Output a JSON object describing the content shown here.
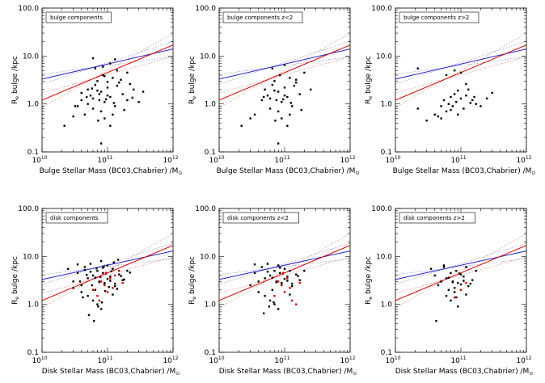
{
  "figure": {
    "x_tick_labels": [
      "10",
      "10",
      "10"
    ],
    "x_tick_exponents": [
      "10",
      "11",
      "12"
    ],
    "y_tick_labels": [
      "0.1",
      "1.0",
      "10.0",
      "100.0"
    ]
  },
  "chart_data": [
    {
      "type": "scatter",
      "panel_label": "bulge components",
      "xlabel": "Bulge Stellar Mass (BC03,Chabrier) /M",
      "xlabel_sub": "⊙",
      "ylabel": "R",
      "ylabel_sub": "e",
      "ylabel_rest": " bulge /kpc",
      "xscale": "log",
      "yscale": "log",
      "xlim": [
        10000000000,
        1000000000000
      ],
      "ylim": [
        0.1,
        100
      ],
      "series": [
        {
          "name": "points",
          "color": "#000000",
          "x": [
            22000000000.0,
            30000000000.0,
            35000000000.0,
            40000000000.0,
            45000000000.0,
            50000000000.0,
            55000000000.0,
            60000000000.0,
            65000000000.0,
            70000000000.0,
            75000000000.0,
            80000000000.0,
            85000000000.0,
            90000000000.0,
            100000000000.0,
            110000000000.0,
            120000000000.0,
            130000000000.0,
            150000000000.0,
            170000000000.0,
            200000000000.0,
            250000000000.0,
            300000000000.0,
            350000000000.0,
            50000000000.0,
            60000000000.0,
            70000000000.0,
            80000000000.0,
            90000000000.0,
            100000000000.0,
            120000000000.0,
            140000000000.0,
            40000000000.0,
            65000000000.0,
            85000000000.0,
            110000000000.0,
            130000000000.0,
            160000000000.0,
            220000000000.0,
            32000000000.0,
            48000000000.0,
            58000000000.0,
            72000000000.0,
            95000000000.0,
            125000000000.0,
            180000000000.0,
            240000000000.0,
            80000000000.0,
            110000000000.0,
            200000000000.0,
            60000000000.0,
            90000000000.0,
            140000000000.0,
            100000000000.0,
            75000000000.0
          ],
          "y": [
            0.35,
            0.55,
            0.9,
            1.2,
            0.6,
            2.0,
            1.5,
            0.8,
            2.5,
            3.0,
            1.2,
            1.8,
            4.0,
            0.5,
            2.2,
            1.4,
            3.5,
            0.9,
            2.8,
            1.6,
            4.5,
            2.0,
            1.1,
            1.8,
            1.0,
            1.3,
            1.9,
            0.7,
            1.1,
            1.5,
            0.6,
            2.4,
            1.7,
            5.5,
            6.0,
            7.0,
            8.5,
            3.2,
            2.6,
            0.9,
            1.4,
            2.1,
            0.45,
            1.25,
            1.05,
            0.75,
            1.35,
            0.15,
            0.35,
            1.2,
            9.0,
            3.8,
            5.0,
            2.9,
            1.6
          ]
        }
      ],
      "fit_lines": [
        {
          "name": "blue fit",
          "color": "#2222cc",
          "x": [
            10000000000.0,
            1000000000000.0
          ],
          "y": [
            3.3,
            14
          ]
        },
        {
          "name": "red fit",
          "color": "#dd0000",
          "x": [
            10000000000.0,
            1000000000000.0
          ],
          "y": [
            1.2,
            17
          ]
        }
      ]
    },
    {
      "type": "scatter",
      "panel_label": "bulge components z<2",
      "xlabel": "Bulge Stellar Mass (BC03,Chabrier) /M",
      "xlabel_sub": "⊙",
      "ylabel": "R",
      "ylabel_sub": "e",
      "ylabel_rest": " bulge /kpc",
      "xscale": "log",
      "yscale": "log",
      "xlim": [
        10000000000,
        1000000000000
      ],
      "ylim": [
        0.1,
        100
      ],
      "series": [
        {
          "name": "points",
          "color": "#000000",
          "x": [
            22000000000.0,
            35000000000.0,
            45000000000.0,
            50000000000.0,
            55000000000.0,
            60000000000.0,
            65000000000.0,
            70000000000.0,
            75000000000.0,
            80000000000.0,
            85000000000.0,
            90000000000.0,
            100000000000.0,
            110000000000.0,
            120000000000.0,
            130000000000.0,
            150000000000.0,
            170000000000.0,
            200000000000.0,
            250000000000.0,
            60000000000.0,
            70000000000.0,
            80000000000.0,
            90000000000.0,
            100000000000.0,
            120000000000.0,
            140000000000.0,
            48000000000.0,
            72000000000.0,
            95000000000.0,
            125000000000.0,
            180000000000.0,
            80000000000.0,
            110000000000.0,
            65000000000.0,
            100000000000.0,
            150000000000.0,
            30000000000.0
          ],
          "y": [
            0.35,
            0.6,
            1.2,
            2.0,
            1.5,
            0.8,
            2.5,
            3.0,
            1.2,
            1.8,
            4.0,
            0.5,
            2.2,
            1.4,
            3.5,
            0.9,
            2.8,
            1.6,
            4.5,
            2.0,
            1.3,
            1.9,
            0.7,
            1.1,
            1.5,
            0.6,
            2.4,
            1.4,
            0.45,
            1.25,
            1.05,
            0.75,
            0.15,
            0.35,
            5.5,
            6.5,
            3.2,
            0.5
          ]
        }
      ],
      "fit_lines": [
        {
          "name": "blue fit",
          "color": "#2222cc",
          "x": [
            10000000000.0,
            1000000000000.0
          ],
          "y": [
            3.3,
            14
          ]
        },
        {
          "name": "red fit",
          "color": "#dd0000",
          "x": [
            10000000000.0,
            1000000000000.0
          ],
          "y": [
            1.2,
            17
          ]
        }
      ]
    },
    {
      "type": "scatter",
      "panel_label": "bulge components z>2",
      "xlabel": "Bulge Stellar Mass (BC03,Chabrier) /M",
      "xlabel_sub": "⊙",
      "ylabel": "R",
      "ylabel_sub": "e",
      "ylabel_rest": " bulge /kpc",
      "xscale": "log",
      "yscale": "log",
      "xlim": [
        10000000000,
        1000000000000
      ],
      "ylim": [
        0.1,
        100
      ],
      "series": [
        {
          "name": "points",
          "color": "#000000",
          "x": [
            22000000000.0,
            30000000000.0,
            40000000000.0,
            45000000000.0,
            50000000000.0,
            55000000000.0,
            60000000000.0,
            65000000000.0,
            70000000000.0,
            75000000000.0,
            80000000000.0,
            85000000000.0,
            90000000000.0,
            100000000000.0,
            110000000000.0,
            120000000000.0,
            130000000000.0,
            150000000000.0,
            170000000000.0,
            200000000000.0,
            250000000000.0,
            300000000000.0,
            50000000000.0,
            70000000000.0,
            90000000000.0,
            120000000000.0,
            140000000000.0,
            60000000000.0,
            80000000000.0,
            100000000000.0,
            160000000000.0,
            22000000000.0
          ],
          "y": [
            0.8,
            0.45,
            0.6,
            0.55,
            0.9,
            1.2,
            0.7,
            1.0,
            1.4,
            0.9,
            1.6,
            1.1,
            0.6,
            1.3,
            0.8,
            1.5,
            2.0,
            1.2,
            1.0,
            0.9,
            1.3,
            1.7,
            0.5,
            0.75,
            1.9,
            2.6,
            1.05,
            4.0,
            5.0,
            4.5,
            1.4,
            5.5
          ]
        }
      ],
      "fit_lines": [
        {
          "name": "blue fit",
          "color": "#2222cc",
          "x": [
            10000000000.0,
            1000000000000.0
          ],
          "y": [
            3.3,
            14
          ]
        },
        {
          "name": "red fit",
          "color": "#dd0000",
          "x": [
            10000000000.0,
            1000000000000.0
          ],
          "y": [
            1.2,
            17
          ]
        }
      ]
    },
    {
      "type": "scatter",
      "panel_label": "disk components",
      "xlabel": "Disk Stellar Mass (BC03,Chabrier) /M",
      "xlabel_sub": "⊙",
      "ylabel": "R",
      "ylabel_sub": "e",
      "ylabel_rest": " bulge /kpc",
      "xscale": "log",
      "yscale": "log",
      "xlim": [
        10000000000,
        1000000000000
      ],
      "ylim": [
        0.1,
        100
      ],
      "series": [
        {
          "name": "points",
          "color": "#000000",
          "x": [
            25000000000.0,
            30000000000.0,
            35000000000.0,
            40000000000.0,
            45000000000.0,
            50000000000.0,
            55000000000.0,
            60000000000.0,
            65000000000.0,
            70000000000.0,
            75000000000.0,
            80000000000.0,
            85000000000.0,
            90000000000.0,
            100000000000.0,
            110000000000.0,
            120000000000.0,
            130000000000.0,
            150000000000.0,
            170000000000.0,
            200000000000.0,
            30000000000.0,
            40000000000.0,
            50000000000.0,
            60000000000.0,
            70000000000.0,
            80000000000.0,
            90000000000.0,
            100000000000.0,
            120000000000.0,
            140000000000.0,
            35000000000.0,
            45000000000.0,
            55000000000.0,
            65000000000.0,
            75000000000.0,
            85000000000.0,
            95000000000.0,
            110000000000.0,
            130000000000.0,
            160000000000.0,
            220000000000.0,
            42000000000.0,
            52000000000.0,
            62000000000.0,
            72000000000.0,
            82000000000.0,
            92000000000.0,
            105000000000.0,
            125000000000.0,
            145000000000.0,
            180000000000.0,
            38000000000.0,
            48000000000.0,
            58000000000.0,
            68000000000.0,
            78000000000.0,
            88000000000.0,
            115000000000.0
          ],
          "y": [
            5.5,
            3.0,
            4.5,
            2.5,
            6.0,
            3.5,
            7.0,
            4.0,
            2.0,
            5.0,
            3.0,
            8.0,
            4.5,
            2.8,
            6.5,
            3.8,
            5.5,
            2.4,
            4.2,
            3.2,
            5.0,
            2.2,
            1.8,
            1.5,
            1.2,
            1.0,
            0.8,
            2.6,
            3.4,
            1.6,
            2.1,
            6.8,
            5.2,
            4.8,
            3.6,
            2.9,
            5.8,
            4.4,
            3.1,
            2.7,
            3.9,
            4.6,
            1.4,
            0.6,
            0.45,
            0.9,
            1.1,
            1.9,
            2.3,
            7.5,
            8.5,
            3.3,
            3.0,
            4.1,
            2.5,
            5.6,
            3.7,
            6.2,
            4.9
          ]
        },
        {
          "name": "red points",
          "color": "#dd0000",
          "x": [
            60000000000.0,
            70000000000.0,
            80000000000.0,
            90000000000.0,
            100000000000.0,
            110000000000.0,
            120000000000.0,
            130000000000.0,
            150000000000.0,
            170000000000.0,
            75000000000.0,
            95000000000.0
          ],
          "y": [
            2.0,
            1.5,
            3.0,
            2.5,
            1.8,
            3.5,
            2.2,
            4.0,
            5.0,
            2.8,
            1.2,
            4.5
          ]
        }
      ],
      "fit_lines": [
        {
          "name": "blue fit",
          "color": "#2222cc",
          "x": [
            10000000000.0,
            1000000000000.0
          ],
          "y": [
            3.3,
            13
          ]
        },
        {
          "name": "red fit",
          "color": "#dd0000",
          "x": [
            10000000000.0,
            1000000000000.0
          ],
          "y": [
            1.2,
            17
          ]
        }
      ]
    },
    {
      "type": "scatter",
      "panel_label": "disk components z<2",
      "xlabel": "Disk Stellar Mass (BC03,Chabrier) /M",
      "xlabel_sub": "⊙",
      "ylabel": "R",
      "ylabel_sub": "e",
      "ylabel_rest": " bulge /kpc",
      "xscale": "log",
      "yscale": "log",
      "xlim": [
        10000000000,
        1000000000000
      ],
      "ylim": [
        0.1,
        100
      ],
      "series": [
        {
          "name": "points",
          "color": "#000000",
          "x": [
            30000000000.0,
            35000000000.0,
            40000000000.0,
            45000000000.0,
            50000000000.0,
            55000000000.0,
            60000000000.0,
            65000000000.0,
            70000000000.0,
            75000000000.0,
            80000000000.0,
            85000000000.0,
            90000000000.0,
            100000000000.0,
            110000000000.0,
            120000000000.0,
            130000000000.0,
            150000000000.0,
            170000000000.0,
            200000000000.0,
            40000000000.0,
            50000000000.0,
            60000000000.0,
            70000000000.0,
            80000000000.0,
            90000000000.0,
            100000000000.0,
            120000000000.0,
            35000000000.0,
            55000000000.0,
            65000000000.0,
            75000000000.0,
            85000000000.0,
            95000000000.0,
            110000000000.0,
            130000000000.0,
            160000000000.0,
            48000000000.0,
            58000000000.0,
            68000000000.0
          ],
          "y": [
            2.5,
            4.5,
            3.0,
            6.0,
            3.5,
            7.0,
            4.0,
            2.0,
            5.0,
            3.0,
            6.5,
            4.5,
            2.8,
            5.5,
            3.8,
            5.0,
            2.4,
            4.2,
            3.2,
            5.0,
            1.8,
            1.5,
            1.2,
            1.0,
            0.8,
            2.6,
            3.4,
            1.6,
            6.8,
            4.8,
            3.6,
            2.9,
            5.8,
            4.4,
            3.1,
            2.7,
            3.9,
            0.65,
            0.9,
            1.1
          ]
        },
        {
          "name": "red points",
          "color": "#dd0000",
          "x": [
            70000000000.0,
            80000000000.0,
            90000000000.0,
            100000000000.0,
            110000000000.0,
            120000000000.0,
            130000000000.0,
            150000000000.0,
            170000000000.0,
            95000000000.0
          ],
          "y": [
            1.5,
            3.0,
            2.5,
            1.8,
            3.5,
            2.2,
            1.2,
            1.0,
            2.8,
            4.5
          ]
        }
      ],
      "fit_lines": [
        {
          "name": "blue fit",
          "color": "#2222cc",
          "x": [
            10000000000.0,
            1000000000000.0
          ],
          "y": [
            3.3,
            13
          ]
        },
        {
          "name": "red fit",
          "color": "#dd0000",
          "x": [
            10000000000.0,
            1000000000000.0
          ],
          "y": [
            1.2,
            17
          ]
        }
      ]
    },
    {
      "type": "scatter",
      "panel_label": "disk components z>2",
      "xlabel": "Disk Stellar Mass (BC03,Chabrier) /M",
      "xlabel_sub": "⊙",
      "ylabel": "R",
      "ylabel_sub": "e",
      "ylabel_rest": " bulge /kpc",
      "xscale": "log",
      "yscale": "log",
      "xlim": [
        10000000000,
        1000000000000
      ],
      "ylim": [
        0.1,
        100
      ],
      "series": [
        {
          "name": "points",
          "color": "#000000",
          "x": [
            35000000000.0,
            40000000000.0,
            45000000000.0,
            50000000000.0,
            55000000000.0,
            60000000000.0,
            65000000000.0,
            70000000000.0,
            75000000000.0,
            80000000000.0,
            85000000000.0,
            90000000000.0,
            100000000000.0,
            110000000000.0,
            120000000000.0,
            130000000000.0,
            150000000000.0,
            170000000000.0,
            60000000000.0,
            70000000000.0,
            80000000000.0,
            90000000000.0,
            100000000000.0,
            120000000000.0,
            55000000000.0,
            65000000000.0,
            75000000000.0,
            85000000000.0,
            95000000000.0,
            110000000000.0,
            140000000000.0,
            42000000000.0
          ],
          "y": [
            5.5,
            4.0,
            2.5,
            3.0,
            6.0,
            3.5,
            2.0,
            4.5,
            3.0,
            2.2,
            5.0,
            2.8,
            4.2,
            3.8,
            6.0,
            2.4,
            3.2,
            5.0,
            1.5,
            1.2,
            1.8,
            0.9,
            2.6,
            1.6,
            6.5,
            3.6,
            2.9,
            1.4,
            4.4,
            3.1,
            2.7,
            0.45
          ]
        },
        {
          "name": "red points",
          "color": "#dd0000",
          "x": [
            80000000000.0,
            100000000000.0,
            120000000000.0
          ],
          "y": [
            1.4,
            2.0,
            2.8
          ]
        }
      ],
      "fit_lines": [
        {
          "name": "blue fit",
          "color": "#2222cc",
          "x": [
            10000000000.0,
            1000000000000.0
          ],
          "y": [
            3.3,
            13
          ]
        },
        {
          "name": "red fit",
          "color": "#dd0000",
          "x": [
            10000000000.0,
            1000000000000.0
          ],
          "y": [
            1.2,
            17
          ]
        }
      ]
    }
  ]
}
